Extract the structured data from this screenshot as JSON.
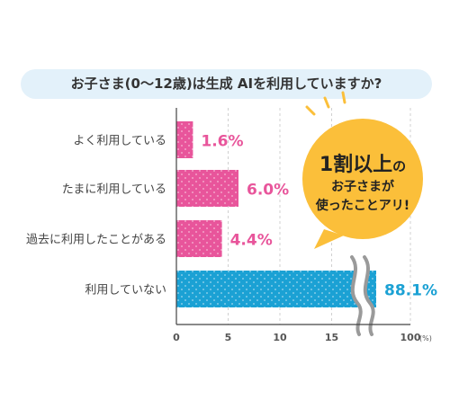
{
  "colors": {
    "title_bg": "#e3f1fa",
    "used_bar": "#e8559b",
    "not_used_bar": "#1ba1d4",
    "label_pink": "#e8559b",
    "label_blue": "#1ba1d4",
    "callout_bg": "#fbbf3a",
    "axis_text": "#555555",
    "category_text": "#444444"
  },
  "callout": {
    "line1_big": "1割以上",
    "line1_small": "の",
    "line2": "お子さまが",
    "line3": "使ったことアリ!"
  },
  "chart_data": {
    "type": "bar",
    "orientation": "horizontal",
    "title": "お子さま(0～12歳)は生成 AIを利用していますか?",
    "categories": [
      "よく利用している",
      "たまに利用している",
      "過去に利用したことがある",
      "利用していない"
    ],
    "values": [
      1.6,
      6.0,
      4.4,
      88.1
    ],
    "value_labels": [
      "1.6%",
      "6.0%",
      "4.4%",
      "88.1%"
    ],
    "x_ticks": [
      "0",
      "5",
      "10",
      "15",
      "100"
    ],
    "x_unit": "(%)",
    "xlim": [
      0,
      100
    ],
    "axis_break": "between 15 and 100",
    "grid": true
  }
}
